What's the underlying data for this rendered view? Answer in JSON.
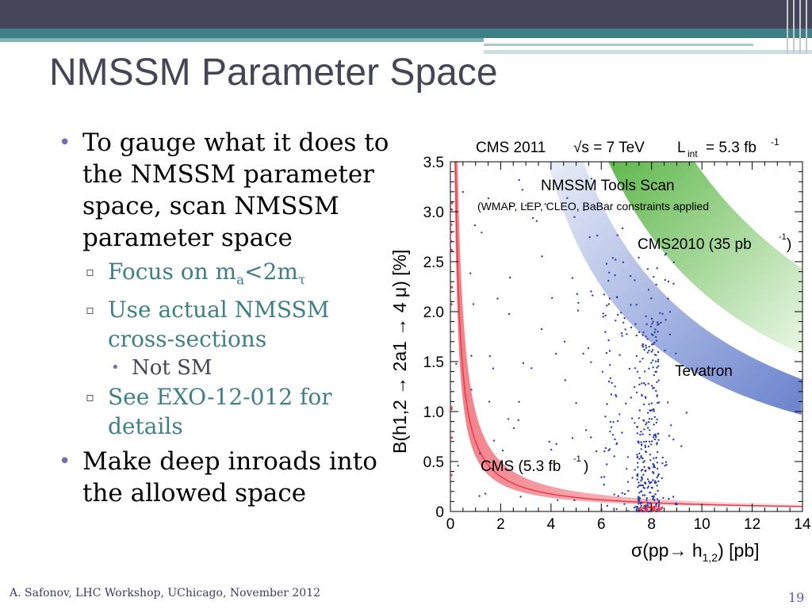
{
  "slide": {
    "title": "NMSSM Parameter Space",
    "bullets": {
      "b1": "To gauge what it does to the NMSSM parameter space, scan NMSSM parameter space",
      "sub1_pre": "Focus on m",
      "sub1_a": "a",
      "sub1_mid": "<2m",
      "sub1_tau": "τ",
      "sub2": "Use actual NMSSM cross-sections",
      "subsub1": "Not SM",
      "sub3": "See EXO-12-012   for details",
      "b2": "Make deep inroads into the allowed space"
    },
    "footer": "A. Safonov, LHC Workshop, UChicago, November 2012",
    "page_number": "19"
  },
  "chart_data": {
    "type": "scatter",
    "header_cms": "CMS 2011",
    "header_sqrt": "√s = 7 TeV",
    "header_lumi": "L",
    "header_lumi_sub": "int",
    "header_lumi_val": "= 5.3 fb",
    "header_lumi_exp": "-1",
    "scan_title": "NMSSM Tools Scan",
    "scan_subtitle": "(WMAP, LEP, CLEO, BaBar constraints applied",
    "band_cms2010": "CMS2010 (35 pb",
    "band_cms2010_exp": "-1",
    "band_tevatron": "Tevatron",
    "band_cms": "CMS (5.3 fb",
    "band_cms_exp": "-1",
    "xlabel": "σ(pp→ h",
    "xlabel_sub": "1,2",
    "xlabel_end": ") [pb]",
    "ylabel": "B(h1,2 → 2a1 → 4 μ) [%]",
    "xlim": [
      0,
      14
    ],
    "ylim": [
      0,
      3.5
    ],
    "xticks": [
      "0",
      "2",
      "4",
      "6",
      "8",
      "10",
      "12",
      "14"
    ],
    "yticks": [
      "0",
      "0.5",
      "1.0",
      "1.5",
      "2.0",
      "2.5",
      "3.0",
      "3.5"
    ],
    "colors": {
      "points": "#2b3fa8",
      "cms_band": "#e83a4a",
      "tevatron_band": "#5a74c8",
      "cms2010_band": "#6ec24a"
    }
  }
}
